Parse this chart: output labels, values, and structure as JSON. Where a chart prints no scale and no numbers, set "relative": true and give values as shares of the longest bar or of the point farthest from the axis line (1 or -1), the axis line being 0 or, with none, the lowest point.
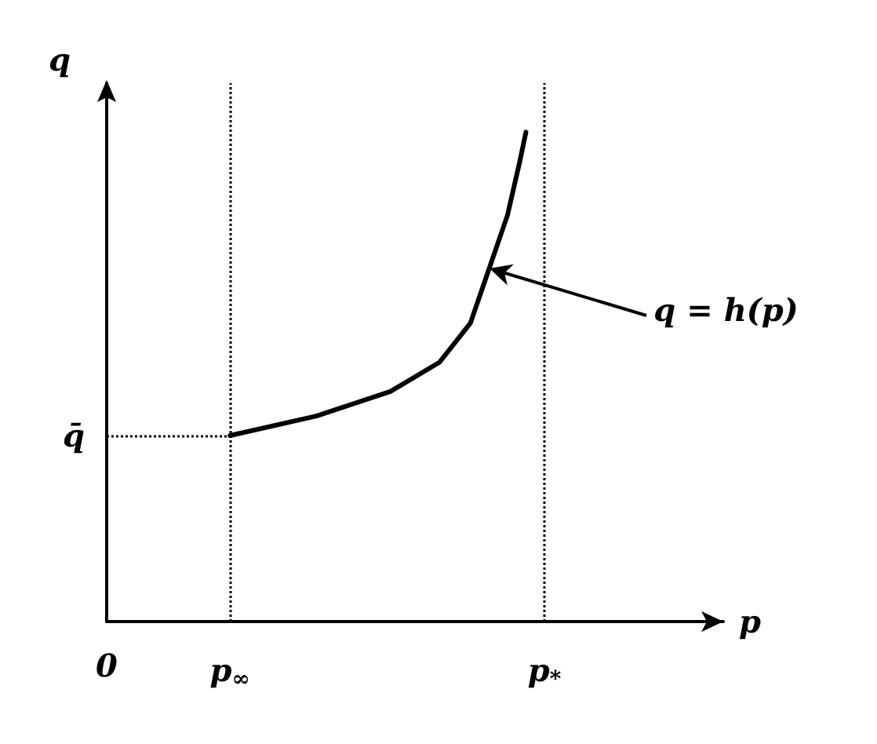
{
  "chart_data": {
    "type": "line",
    "relative": true,
    "xlabel": "p",
    "ylabel": "q",
    "color": "#000000",
    "categories": [
      "0",
      null,
      null,
      null,
      null,
      null,
      null,
      null,
      null,
      null,
      null,
      null,
      null,
      null,
      null,
      null,
      null,
      null,
      null,
      null,
      "p$_{∞}$",
      null,
      null,
      null,
      null,
      null,
      null,
      null,
      null,
      null,
      null,
      null,
      null,
      null,
      null,
      null,
      null,
      null,
      null,
      null,
      null,
      null,
      null,
      null,
      null,
      null,
      null,
      null,
      null,
      null,
      null,
      null,
      null,
      null,
      null,
      null,
      null,
      null,
      null,
      null,
      null,
      null,
      null,
      null,
      null,
      null,
      null,
      null,
      null,
      null,
      null,
      "p$_{*}$",
      null,
      null,
      null,
      null,
      null,
      null,
      null,
      null,
      null,
      null,
      null,
      null,
      null,
      null,
      null,
      null,
      null,
      null,
      null,
      null,
      null,
      null,
      null,
      null,
      null,
      null,
      null,
      null,
      null
    ],
    "values": [
      null,
      null,
      null,
      null,
      null,
      null,
      null,
      null,
      null,
      null,
      null,
      null,
      null,
      null,
      null,
      null,
      null,
      null,
      null,
      null,
      0.38,
      null,
      null,
      null,
      null,
      null,
      null,
      null,
      null,
      null,
      null,
      null,
      null,
      null,
      0.42,
      null,
      null,
      null,
      null,
      null,
      null,
      null,
      null,
      null,
      null,
      null,
      0.47,
      null,
      null,
      null,
      null,
      null,
      null,
      null,
      0.53,
      null,
      null,
      null,
      null,
      0.61,
      null,
      null,
      0.72,
      null,
      null,
      0.83,
      null,
      0.94,
      1,
      null,
      null,
      null,
      null,
      null,
      null,
      null,
      null,
      null,
      null,
      null,
      null,
      null,
      null,
      null,
      null,
      null,
      null,
      null,
      null,
      null,
      null,
      null,
      null,
      null,
      null,
      null,
      null,
      null,
      null,
      null,
      null
    ],
    "ref_lines": [
      {
        "axis": "x",
        "value": "p$_{∞}$",
        "line_style": "dotted"
      },
      {
        "axis": "x",
        "value": "p$_{*}$",
        "line_style": "dotted"
      },
      {
        "axis": "y",
        "value": 0.38,
        "label": "q̄",
        "line_style": "dotted"
      }
    ],
    "annotations": [
      "q = h(p)"
    ],
    "marker": "none",
    "line_style": "solid",
    "grid": false
  }
}
